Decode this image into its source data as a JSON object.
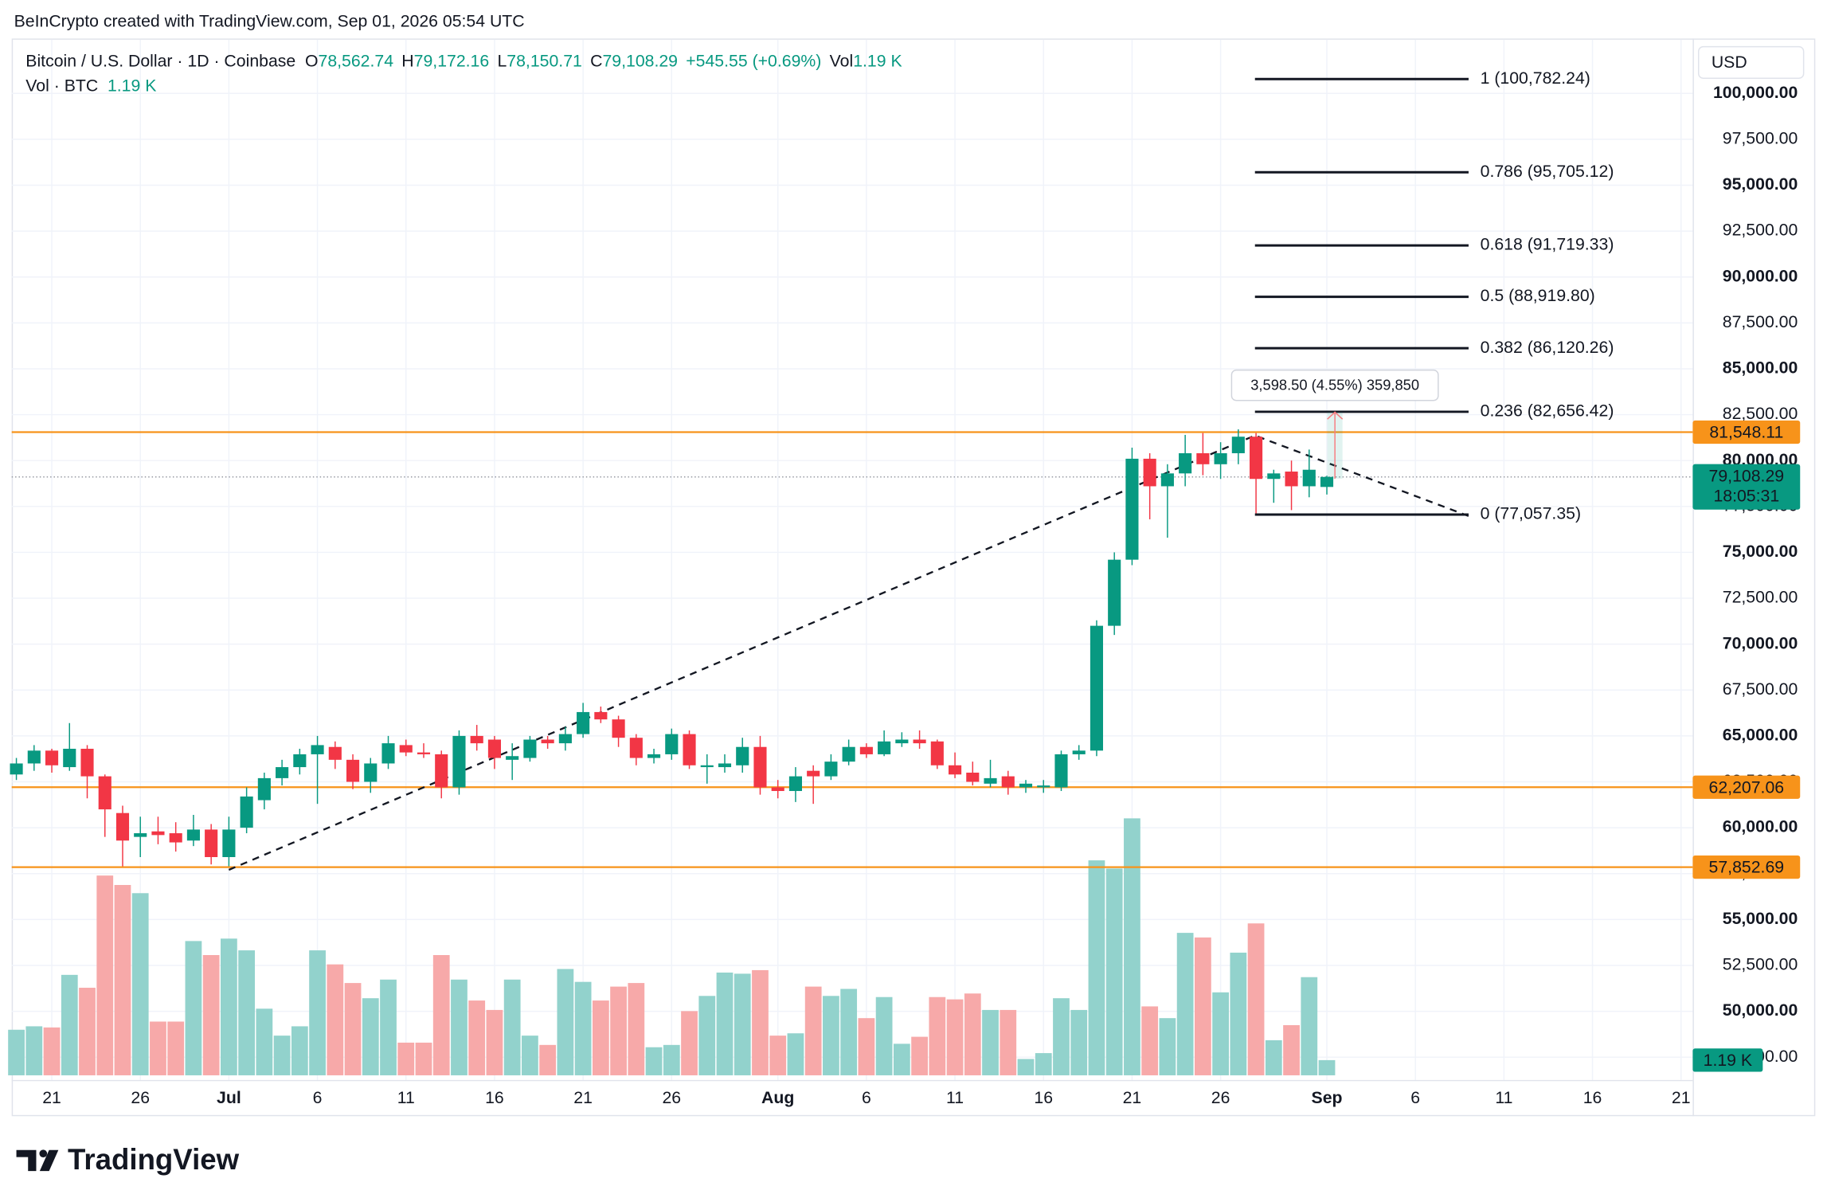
{
  "header": "BeInCrypto created with TradingView.com, Sep 01, 2026 05:54 UTC",
  "logo": "TradingView",
  "chart_data": {
    "type": "candlestick",
    "legend": {
      "symbol": "Bitcoin / U.S. Dollar · 1D · Coinbase",
      "items": [
        {
          "key": "O",
          "value": "78,562.74"
        },
        {
          "key": "H",
          "value": "79,172.16"
        },
        {
          "key": "L",
          "value": "78,150.71"
        },
        {
          "key": "C",
          "value": "79,108.29"
        }
      ],
      "change": "+545.55 (+0.69%)",
      "vol_key": "Vol",
      "vol_value": "1.19 K",
      "vol_series": "Vol · BTC",
      "vol_series_value": "1.19 K"
    },
    "currency": "USD",
    "up_color": "#089981",
    "down_color": "#f23645",
    "volume_up_color": "#92d2cc",
    "volume_down_color": "#f7a9a9",
    "grid": true,
    "x": [
      "06-19",
      "06-20",
      "06-21",
      "06-22",
      "06-23",
      "06-24",
      "06-25",
      "06-26",
      "06-27",
      "06-28",
      "06-29",
      "06-30",
      "07-01",
      "07-02",
      "07-03",
      "07-04",
      "07-05",
      "07-06",
      "07-07",
      "07-08",
      "07-09",
      "07-10",
      "07-11",
      "07-12",
      "07-13",
      "07-14",
      "07-15",
      "07-16",
      "07-17",
      "07-18",
      "07-19",
      "07-20",
      "07-21",
      "07-22",
      "07-23",
      "07-24",
      "07-25",
      "07-26",
      "07-27",
      "07-28",
      "07-29",
      "07-30",
      "07-31",
      "08-01",
      "08-02",
      "08-03",
      "08-04",
      "08-05",
      "08-06",
      "08-07",
      "08-08",
      "08-09",
      "08-10",
      "08-11",
      "08-12",
      "08-13",
      "08-14",
      "08-15",
      "08-16",
      "08-17",
      "08-18",
      "08-19",
      "08-20",
      "08-21",
      "08-22",
      "08-23",
      "08-24",
      "08-25",
      "08-26",
      "08-27",
      "08-28",
      "08-29",
      "08-30",
      "08-31",
      "09-01"
    ],
    "open": [
      62900,
      63500,
      64200,
      63300,
      64300,
      62800,
      60800,
      59500,
      59800,
      59700,
      59300,
      59900,
      58400,
      60000,
      61500,
      62700,
      63300,
      64000,
      64400,
      63700,
      62500,
      63500,
      64500,
      64100,
      64000,
      62200,
      65000,
      64800,
      63700,
      63800,
      64800,
      64600,
      65100,
      66300,
      65900,
      64900,
      63800,
      64000,
      65100,
      63300,
      63300,
      63400,
      64400,
      62200,
      62000,
      63100,
      62800,
      63600,
      64400,
      64000,
      64600,
      64800,
      64700,
      63400,
      63000,
      62400,
      62800,
      62200,
      62200,
      62200,
      64000,
      64200,
      71000,
      74600,
      80100,
      78600,
      79300,
      80400,
      79800,
      80400,
      81300,
      79000,
      79400,
      78600,
      78562.74
    ],
    "high": [
      63800,
      64500,
      64300,
      65700,
      64500,
      62900,
      61200,
      60600,
      60600,
      60300,
      60700,
      60200,
      60600,
      62200,
      63000,
      63700,
      64300,
      65000,
      64700,
      64000,
      63800,
      65000,
      64800,
      64600,
      64200,
      65300,
      65600,
      65000,
      64600,
      65000,
      65000,
      65500,
      66800,
      66600,
      66100,
      65100,
      64300,
      65400,
      65300,
      64000,
      64000,
      64900,
      65000,
      62600,
      63300,
      63400,
      64000,
      64800,
      64600,
      65300,
      65200,
      65300,
      64800,
      64100,
      63600,
      63700,
      63100,
      62600,
      62600,
      64200,
      64500,
      71300,
      75000,
      80700,
      80400,
      79800,
      81400,
      81500,
      81000,
      81700,
      81500,
      79500,
      80000,
      80600,
      79172.16
    ],
    "low": [
      62600,
      63100,
      63000,
      63100,
      61600,
      59500,
      57900,
      58400,
      59100,
      58700,
      59000,
      58000,
      57900,
      59700,
      61000,
      62300,
      62900,
      61300,
      63200,
      62100,
      61900,
      63200,
      63900,
      63800,
      61600,
      61800,
      64200,
      63200,
      62600,
      63600,
      64300,
      64200,
      64900,
      65700,
      64400,
      63400,
      63500,
      63700,
      63200,
      62400,
      63000,
      63000,
      61800,
      61600,
      61400,
      61300,
      62600,
      63400,
      63800,
      63900,
      64400,
      64300,
      63200,
      62700,
      62300,
      62200,
      61800,
      61900,
      61900,
      62000,
      63700,
      63900,
      70500,
      74300,
      76800,
      75800,
      78600,
      79200,
      79000,
      79800,
      77100,
      77700,
      77300,
      78000,
      78150.71
    ],
    "close": [
      63500,
      64200,
      63400,
      64300,
      62800,
      61000,
      59300,
      59700,
      59600,
      59200,
      59900,
      58400,
      59900,
      61700,
      62700,
      63300,
      64000,
      64500,
      63700,
      62500,
      63500,
      64600,
      64100,
      64000,
      62200,
      65000,
      64600,
      63800,
      63900,
      64800,
      64600,
      65100,
      66300,
      65900,
      64900,
      63800,
      64000,
      65100,
      63400,
      63400,
      63500,
      64400,
      62200,
      62000,
      62800,
      62800,
      63600,
      64400,
      64000,
      64700,
      64800,
      64600,
      63400,
      62900,
      62500,
      62700,
      62200,
      62400,
      62300,
      64000,
      64200,
      71000,
      74600,
      80100,
      78600,
      79300,
      80400,
      79800,
      80400,
      81300,
      79000,
      79300,
      78600,
      79500,
      79108.29
    ],
    "volume": [
      3.57,
      3.84,
      3.75,
      7.87,
      6.86,
      15.65,
      14.91,
      14.27,
      4.21,
      4.21,
      10.52,
      9.42,
      10.71,
      9.79,
      5.22,
      3.11,
      3.84,
      9.79,
      8.69,
      7.23,
      6.04,
      7.5,
      2.56,
      2.56,
      9.42,
      7.5,
      5.86,
      5.12,
      7.5,
      3.11,
      2.38,
      8.33,
      7.32,
      5.86,
      6.95,
      7.23,
      2.2,
      2.38,
      5.03,
      6.22,
      8.05,
      7.96,
      8.24,
      3.11,
      3.29,
      6.95,
      6.22,
      6.77,
      4.48,
      6.13,
      2.47,
      3.02,
      6.13,
      5.95,
      6.41,
      5.12,
      5.12,
      1.28,
      1.74,
      6.04,
      5.12,
      16.84,
      16.2,
      20.13,
      5.4,
      4.48,
      11.16,
      10.8,
      6.5,
      9.61,
      11.9,
      2.75,
      3.93,
      7.69,
      1.19
    ],
    "volume_label": "1.19 K",
    "volume_ylim": [
      0,
      30
    ],
    "xlim": [
      "06-19",
      "09-21"
    ],
    "xticks": [
      {
        "value": "06-21",
        "label": "21"
      },
      {
        "value": "06-26",
        "label": "26"
      },
      {
        "value": "07-01",
        "label": "Jul"
      },
      {
        "value": "07-06",
        "label": "6"
      },
      {
        "value": "07-11",
        "label": "11"
      },
      {
        "value": "07-16",
        "label": "16"
      },
      {
        "value": "07-21",
        "label": "21"
      },
      {
        "value": "07-26",
        "label": "26"
      },
      {
        "value": "08-01",
        "label": "Aug"
      },
      {
        "value": "08-06",
        "label": "6"
      },
      {
        "value": "08-11",
        "label": "11"
      },
      {
        "value": "08-16",
        "label": "16"
      },
      {
        "value": "08-21",
        "label": "21"
      },
      {
        "value": "08-26",
        "label": "26"
      },
      {
        "value": "09-01",
        "label": "Sep"
      },
      {
        "value": "09-06",
        "label": "6"
      },
      {
        "value": "09-11",
        "label": "11"
      },
      {
        "value": "09-16",
        "label": "16"
      },
      {
        "value": "09-21",
        "label": "21"
      }
    ],
    "ylim": [
      46258,
      102862
    ],
    "yticks": [
      {
        "value": 47500,
        "label": "47,500.00"
      },
      {
        "value": 50000,
        "label": "50,000.00"
      },
      {
        "value": 52500,
        "label": "52,500.00"
      },
      {
        "value": 55000,
        "label": "55,000.00"
      },
      {
        "value": 57500,
        "label": "57,500.00"
      },
      {
        "value": 60000,
        "label": "60,000.00"
      },
      {
        "value": 62500,
        "label": "62,500.00"
      },
      {
        "value": 65000,
        "label": "65,000.00"
      },
      {
        "value": 67500,
        "label": "67,500.00"
      },
      {
        "value": 70000,
        "label": "70,000.00"
      },
      {
        "value": 72500,
        "label": "72,500.00"
      },
      {
        "value": 75000,
        "label": "75,000.00"
      },
      {
        "value": 77500,
        "label": "77,500.00"
      },
      {
        "value": 80000,
        "label": "80,000.00"
      },
      {
        "value": 82500,
        "label": "82,500.00"
      },
      {
        "value": 85000,
        "label": "85,000.00"
      },
      {
        "value": 87500,
        "label": "87,500.00"
      },
      {
        "value": 90000,
        "label": "90,000.00"
      },
      {
        "value": 92500,
        "label": "92,500.00"
      },
      {
        "value": 95000,
        "label": "95,000.00"
      },
      {
        "value": 97500,
        "label": "97,500.00"
      },
      {
        "value": 100000,
        "label": "100,000.00"
      }
    ],
    "levels": [
      {
        "value": 81548.11,
        "label": "81,548.11"
      },
      {
        "value": 62207.06,
        "label": "62,207.06"
      },
      {
        "value": 57852.69,
        "label": "57,852.69"
      }
    ],
    "level_color": "#f7931a",
    "last_price": {
      "value": 79108.29,
      "label": "79,108.29",
      "countdown": "18:05:31"
    },
    "fib": [
      {
        "value": 100782.24,
        "label": "1 (100,782.24)"
      },
      {
        "value": 95705.12,
        "label": "0.786 (95,705.12)"
      },
      {
        "value": 91719.33,
        "label": "0.618 (91,719.33)"
      },
      {
        "value": 88919.8,
        "label": "0.5 (88,919.80)"
      },
      {
        "value": 86120.26,
        "label": "0.382 (86,120.26)"
      },
      {
        "value": 82656.42,
        "label": "0.236 (82,656.42)"
      },
      {
        "value": 77057.35,
        "label": "0 (77,057.35)"
      }
    ],
    "measure": "3,598.50 (4.55%) 359,850"
  }
}
